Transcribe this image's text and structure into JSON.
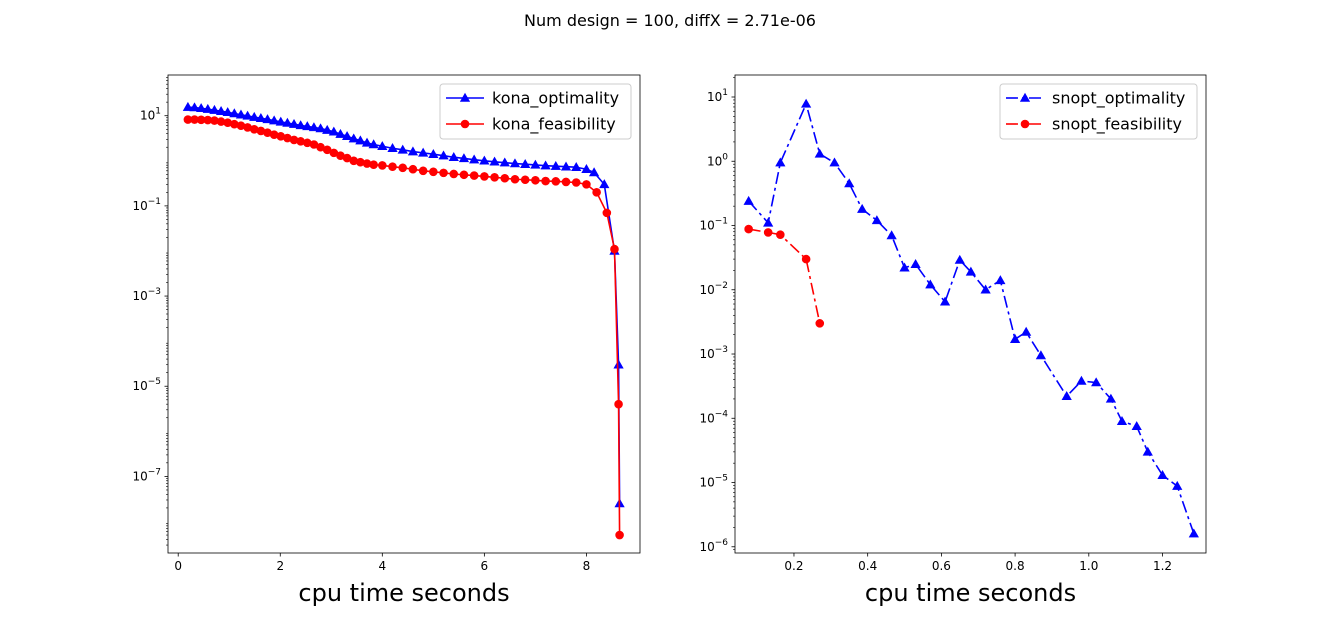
{
  "figure": {
    "suptitle": "Num design = 100, diffX = 2.71e-06"
  },
  "chart_data": [
    {
      "type": "line",
      "yscale": "log",
      "xlabel": "cpu time seconds",
      "ylabel": "",
      "xlim": [
        -0.2,
        9.05
      ],
      "ylim": [
        2e-09,
        80
      ],
      "xticks": [
        0,
        2,
        4,
        6,
        8
      ],
      "xtick_labels": [
        "0",
        "2",
        "4",
        "6",
        "8"
      ],
      "yticks": [
        1e-07,
        1e-05,
        0.001,
        0.1,
        10
      ],
      "ytick_labels": [
        {
          "base": "10",
          "exp": "−7"
        },
        {
          "base": "10",
          "exp": "−5"
        },
        {
          "base": "10",
          "exp": "−3"
        },
        {
          "base": "10",
          "exp": "−1"
        },
        {
          "base": "10",
          "exp": "1"
        }
      ],
      "legend_position": "upper-right",
      "series": [
        {
          "name": "kona_optimality",
          "color": "#0000ff",
          "marker": "triangle",
          "linestyle": "solid",
          "x": [
            0.19,
            0.32,
            0.45,
            0.58,
            0.71,
            0.84,
            0.97,
            1.1,
            1.23,
            1.36,
            1.49,
            1.62,
            1.75,
            1.88,
            2.01,
            2.14,
            2.27,
            2.4,
            2.53,
            2.66,
            2.79,
            2.92,
            3.05,
            3.18,
            3.31,
            3.44,
            3.57,
            3.7,
            3.83,
            4.0,
            4.2,
            4.4,
            4.6,
            4.8,
            5.0,
            5.2,
            5.4,
            5.6,
            5.8,
            6.0,
            6.2,
            6.4,
            6.6,
            6.8,
            7.0,
            7.2,
            7.4,
            7.6,
            7.8,
            8.0,
            8.15,
            8.35,
            8.55,
            8.63,
            8.65
          ],
          "y": [
            15.5,
            15.2,
            14.6,
            14.0,
            13.3,
            12.6,
            11.9,
            11.2,
            10.5,
            9.9,
            9.3,
            8.8,
            8.3,
            7.8,
            7.3,
            6.9,
            6.5,
            6.1,
            5.8,
            5.5,
            5.2,
            4.8,
            4.4,
            3.9,
            3.5,
            3.1,
            2.8,
            2.5,
            2.3,
            2.1,
            1.9,
            1.75,
            1.6,
            1.5,
            1.4,
            1.3,
            1.2,
            1.13,
            1.06,
            1.0,
            0.95,
            0.91,
            0.87,
            0.84,
            0.81,
            0.78,
            0.76,
            0.74,
            0.72,
            0.65,
            0.55,
            0.3,
            0.01,
            3e-05,
            2.5e-08
          ]
        },
        {
          "name": "kona_feasibility",
          "color": "#ff0000",
          "marker": "circle",
          "linestyle": "solid",
          "x": [
            0.19,
            0.32,
            0.45,
            0.58,
            0.71,
            0.84,
            0.97,
            1.1,
            1.23,
            1.36,
            1.49,
            1.62,
            1.75,
            1.88,
            2.01,
            2.14,
            2.27,
            2.4,
            2.53,
            2.66,
            2.79,
            2.92,
            3.05,
            3.18,
            3.31,
            3.44,
            3.57,
            3.7,
            3.83,
            4.0,
            4.2,
            4.4,
            4.6,
            4.8,
            5.0,
            5.2,
            5.4,
            5.6,
            5.8,
            6.0,
            6.2,
            6.4,
            6.6,
            6.8,
            7.0,
            7.2,
            7.4,
            7.6,
            7.8,
            8.0,
            8.2,
            8.4,
            8.55,
            8.63,
            8.65
          ],
          "y": [
            8.2,
            8.2,
            8.1,
            8.0,
            7.8,
            7.4,
            7.0,
            6.5,
            6.0,
            5.5,
            5.0,
            4.6,
            4.2,
            3.8,
            3.5,
            3.2,
            2.9,
            2.7,
            2.5,
            2.3,
            2.0,
            1.75,
            1.5,
            1.3,
            1.15,
            1.0,
            0.93,
            0.87,
            0.82,
            0.79,
            0.74,
            0.7,
            0.65,
            0.6,
            0.57,
            0.54,
            0.51,
            0.49,
            0.47,
            0.45,
            0.43,
            0.41,
            0.39,
            0.38,
            0.37,
            0.355,
            0.35,
            0.34,
            0.33,
            0.3,
            0.2,
            0.07,
            0.011,
            4e-06,
            5e-09
          ]
        }
      ]
    },
    {
      "type": "line",
      "yscale": "log",
      "xlabel": "cpu time seconds",
      "ylabel": "",
      "xlim": [
        0.04,
        1.318
      ],
      "ylim": [
        8e-07,
        22
      ],
      "xticks": [
        0.2,
        0.4,
        0.6,
        0.8,
        1.0,
        1.2
      ],
      "xtick_labels": [
        "0.2",
        "0.4",
        "0.6",
        "0.8",
        "1.0",
        "1.2"
      ],
      "yticks": [
        1e-06,
        1e-05,
        0.0001,
        0.001,
        0.01,
        0.1,
        1,
        10
      ],
      "ytick_labels": [
        {
          "base": "10",
          "exp": "−6"
        },
        {
          "base": "10",
          "exp": "−5"
        },
        {
          "base": "10",
          "exp": "−4"
        },
        {
          "base": "10",
          "exp": "−3"
        },
        {
          "base": "10",
          "exp": "−2"
        },
        {
          "base": "10",
          "exp": "−1"
        },
        {
          "base": "10",
          "exp": "0"
        },
        {
          "base": "10",
          "exp": "1"
        }
      ],
      "legend_position": "upper-right",
      "series": [
        {
          "name": "snopt_optimality",
          "color": "#0000ff",
          "marker": "triangle",
          "linestyle": "dashdot",
          "x": [
            0.077,
            0.13,
            0.163,
            0.233,
            0.27,
            0.31,
            0.35,
            0.385,
            0.425,
            0.465,
            0.5,
            0.53,
            0.57,
            0.61,
            0.65,
            0.68,
            0.72,
            0.76,
            0.8,
            0.83,
            0.87,
            0.94,
            0.98,
            1.02,
            1.06,
            1.09,
            1.13,
            1.16,
            1.2,
            1.24,
            1.285
          ],
          "y": [
            0.24,
            0.11,
            0.95,
            7.8,
            1.3,
            0.95,
            0.45,
            0.18,
            0.12,
            0.07,
            0.022,
            0.025,
            0.012,
            0.0065,
            0.029,
            0.019,
            0.01,
            0.014,
            0.0017,
            0.0022,
            0.00095,
            0.00022,
            0.00038,
            0.00036,
            0.0002,
            9e-05,
            7.5e-05,
            3e-05,
            1.3e-05,
            8.8e-06,
            1.6e-06
          ]
        },
        {
          "name": "snopt_feasibility",
          "color": "#ff0000",
          "marker": "circle",
          "linestyle": "dashdot",
          "x": [
            0.077,
            0.13,
            0.163,
            0.233,
            0.27
          ],
          "y": [
            0.088,
            0.078,
            0.072,
            0.03,
            0.003
          ]
        }
      ]
    }
  ]
}
